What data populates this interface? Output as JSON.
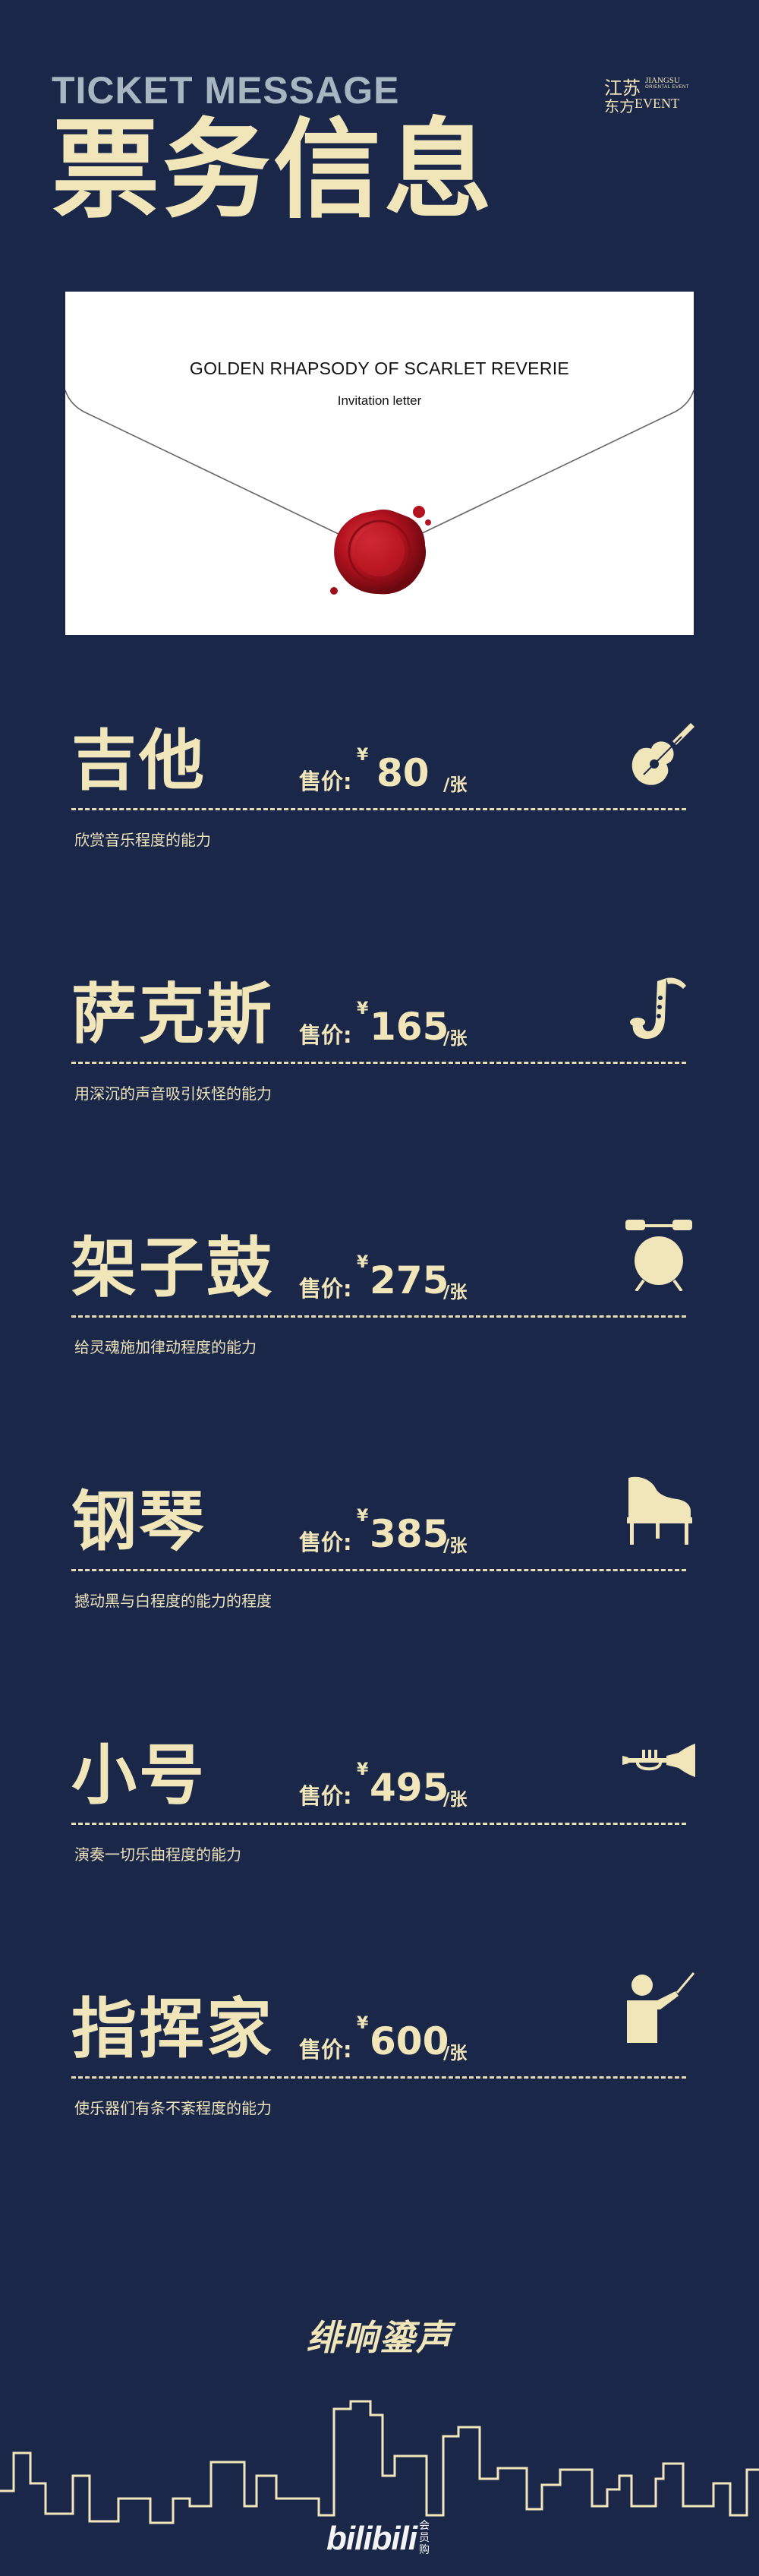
{
  "header": {
    "title_en": "TICKET MESSAGE",
    "title_zh": "票务信息",
    "brand": {
      "zh_line1": "江苏",
      "en_line1": "JIANGSU",
      "en_line2": "ORIENTAL EVENT",
      "zh_line2": "东方",
      "en_line3": "EVENT"
    }
  },
  "invitation": {
    "title": "GOLDEN RHAPSODY OF SCARLET REVERIE",
    "subtitle": "Invitation letter"
  },
  "price_label": "售价:",
  "currency": "¥",
  "unit": "/张",
  "tickets": [
    {
      "name": "吉他",
      "price": "80",
      "description": "欣赏音乐程度的能力",
      "icon": "guitar-icon"
    },
    {
      "name": "萨克斯",
      "price": "165",
      "description": "用深沉的声音吸引妖怪的能力",
      "icon": "saxophone-icon"
    },
    {
      "name": "架子鼓",
      "price": "275",
      "description": "给灵魂施加律动程度的能力",
      "icon": "drum-icon"
    },
    {
      "name": "钢琴",
      "price": "385",
      "description": "撼动黑与白程度的能力的程度",
      "icon": "piano-icon"
    },
    {
      "name": "小号",
      "price": "495",
      "description": "演奏一切乐曲程度的能力",
      "icon": "trumpet-icon"
    },
    {
      "name": "指挥家",
      "price": "600",
      "description": "使乐器们有条不紊程度的能力",
      "icon": "conductor-icon"
    }
  ],
  "footer": {
    "logo_text": "绯响鎏声",
    "bilibili": "bilibili",
    "bilibili_sub": "会员购"
  },
  "colors": {
    "background": "#1b2749",
    "accent": "#f0e6ba",
    "subtitle": "#a7b6c1",
    "seal": "#b3121f"
  }
}
